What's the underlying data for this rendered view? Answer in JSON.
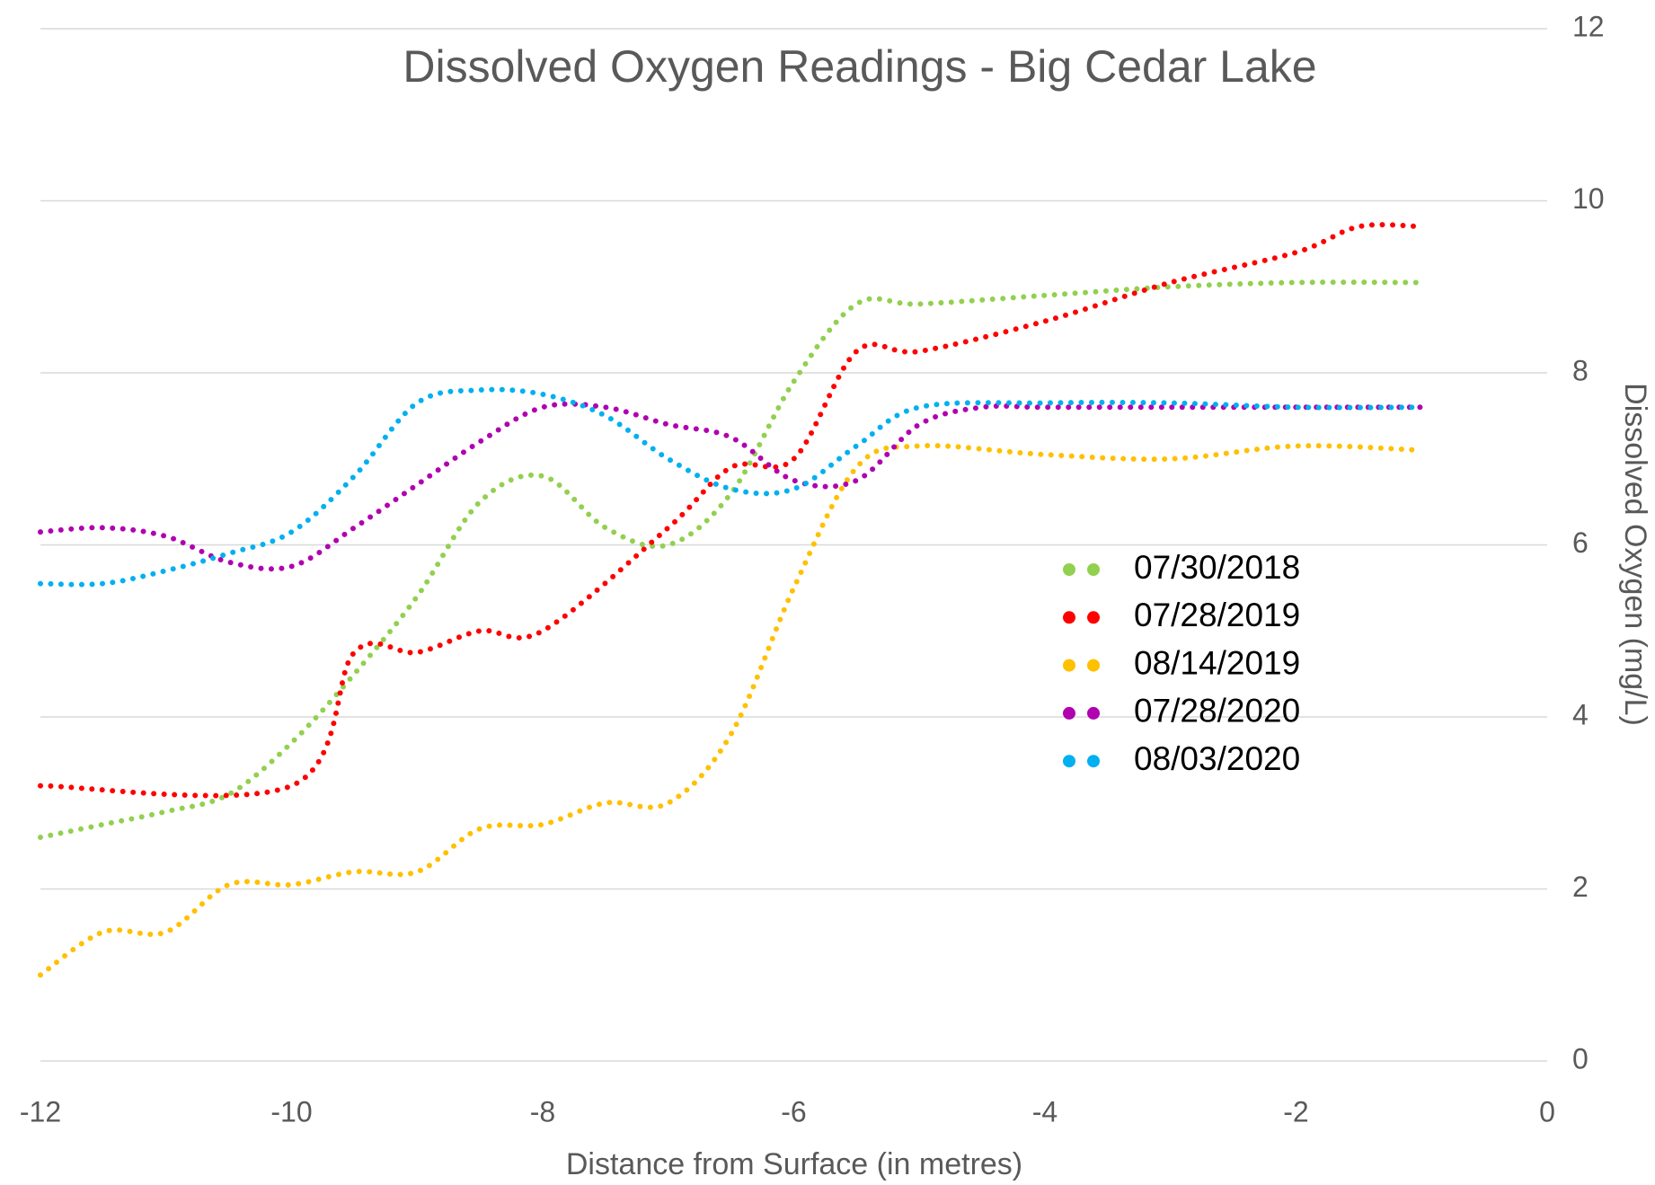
{
  "chart_data": {
    "type": "line",
    "title": "Dissolved Oxygen Readings - Big Cedar Lake",
    "x_label": "Distance from Surface (in metres)",
    "y_label": "Dissolved Oxygen (mg/L)",
    "xlim": [
      -12,
      0
    ],
    "xticks": [
      -12,
      -10,
      -8,
      -6,
      -4,
      -2,
      0
    ],
    "ylim": [
      0,
      12
    ],
    "yticks": [
      0,
      2,
      4,
      6,
      8,
      10,
      12
    ],
    "grid": true,
    "y_axis_side": "right",
    "line_style": "dotted",
    "smooth": true,
    "series": [
      {
        "name": "07/30/2018",
        "color": "#92d050",
        "x": [
          -12,
          -11.5,
          -11,
          -10.5,
          -10,
          -9.5,
          -9,
          -8.5,
          -8,
          -7.5,
          -7,
          -6.5,
          -6,
          -5.5,
          -5,
          -4,
          -3,
          -2,
          -1
        ],
        "values": [
          2.6,
          2.75,
          2.9,
          3.1,
          3.7,
          4.5,
          5.4,
          6.5,
          6.8,
          6.2,
          6.0,
          6.6,
          7.9,
          8.8,
          8.8,
          8.9,
          9.0,
          9.05,
          9.05
        ]
      },
      {
        "name": "07/28/2019",
        "color": "#ff0000",
        "x": [
          -12,
          -10,
          -9.5,
          -9,
          -8.5,
          -8,
          -7,
          -6.5,
          -6,
          -5.5,
          -5,
          -4,
          -3,
          -2,
          -1.5,
          -1
        ],
        "values": [
          3.2,
          3.2,
          4.75,
          4.75,
          5.0,
          5.0,
          6.2,
          6.9,
          7.0,
          8.25,
          8.25,
          8.6,
          9.05,
          9.4,
          9.7,
          9.7
        ]
      },
      {
        "name": "08/14/2019",
        "color": "#ffc000",
        "x": [
          -12,
          -11.5,
          -11,
          -10.5,
          -10,
          -9.5,
          -9,
          -8.5,
          -8,
          -7.5,
          -7,
          -6.5,
          -6,
          -5.5,
          -5,
          -4,
          -3,
          -2,
          -1
        ],
        "values": [
          1.0,
          1.5,
          1.5,
          2.05,
          2.05,
          2.2,
          2.2,
          2.7,
          2.75,
          3.0,
          3.0,
          3.8,
          5.5,
          6.9,
          7.15,
          7.05,
          7.0,
          7.15,
          7.1
        ]
      },
      {
        "name": "07/28/2020",
        "color": "#b000b0",
        "x": [
          -12,
          -11.5,
          -11,
          -10.5,
          -10,
          -9.5,
          -9,
          -8.5,
          -8,
          -7.5,
          -7,
          -6.5,
          -6,
          -5.5,
          -5,
          -4.5,
          -4,
          -3,
          -2,
          -1
        ],
        "values": [
          6.15,
          6.2,
          6.1,
          5.8,
          5.75,
          6.2,
          6.7,
          7.2,
          7.6,
          7.6,
          7.4,
          7.25,
          6.75,
          6.75,
          7.4,
          7.6,
          7.6,
          7.6,
          7.6,
          7.6
        ]
      },
      {
        "name": "08/03/2020",
        "color": "#00b0f0",
        "x": [
          -12,
          -11.5,
          -11,
          -10.5,
          -10,
          -9.5,
          -9,
          -8.5,
          -8,
          -7.5,
          -7,
          -6.5,
          -6,
          -5.5,
          -5,
          -4,
          -3,
          -2,
          -1
        ],
        "values": [
          5.55,
          5.55,
          5.7,
          5.9,
          6.15,
          6.8,
          7.65,
          7.8,
          7.75,
          7.5,
          7.0,
          6.65,
          6.65,
          7.15,
          7.6,
          7.65,
          7.65,
          7.6,
          7.6
        ]
      }
    ]
  }
}
